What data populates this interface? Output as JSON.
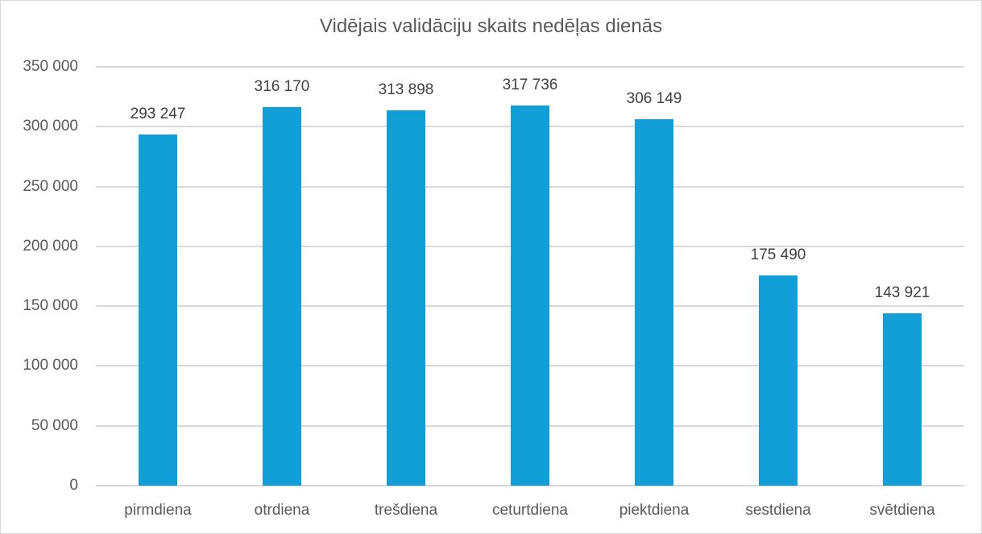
{
  "chart_data": {
    "type": "bar",
    "title": "Vidējais validāciju skaits nedēļas dienās",
    "xlabel": "",
    "ylabel": "",
    "categories": [
      "pirmdiena",
      "otrdiena",
      "trešdiena",
      "ceturtdiena",
      "piektdiena",
      "sestdiena",
      "svētdiena"
    ],
    "values": [
      293247,
      316170,
      313898,
      317736,
      306149,
      175490,
      143921
    ],
    "data_labels": [
      "293 247",
      "316 170",
      "313 898",
      "317 736",
      "306 149",
      "175 490",
      "143 921"
    ],
    "ylim": [
      0,
      350000
    ],
    "yticks": [
      0,
      50000,
      100000,
      150000,
      200000,
      250000,
      300000,
      350000
    ],
    "ytick_labels": [
      "0",
      "50 000",
      "100 000",
      "150 000",
      "200 000",
      "250 000",
      "300 000",
      "350 000"
    ],
    "grid": true,
    "legend": null,
    "bar_color": "#129fd7"
  }
}
